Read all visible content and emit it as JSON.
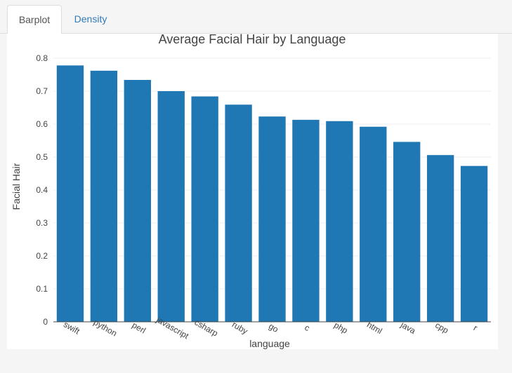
{
  "tabs": [
    {
      "label": "Barplot",
      "active": true
    },
    {
      "label": "Density",
      "active": false
    }
  ],
  "colors": {
    "bar": "#1f77b4",
    "grid": "#eeeeee",
    "axis": "#444444",
    "tab_link": "#337ab7"
  },
  "chart_data": {
    "type": "bar",
    "title": "Average Facial Hair by Language",
    "xlabel": "language",
    "ylabel": "Facial Hair",
    "categories": [
      "swift",
      "python",
      "perl",
      "javascript",
      "csharp",
      "ruby",
      "go",
      "c",
      "php",
      "html",
      "java",
      "cpp",
      "r"
    ],
    "values": [
      0.778,
      0.762,
      0.734,
      0.7,
      0.684,
      0.659,
      0.623,
      0.613,
      0.609,
      0.592,
      0.546,
      0.506,
      0.473
    ],
    "ylim": [
      0,
      0.8
    ],
    "yticks": [
      "0",
      "0.1",
      "0.2",
      "0.3",
      "0.4",
      "0.5",
      "0.6",
      "0.7",
      "0.8"
    ],
    "grid": true,
    "legend": "none"
  }
}
